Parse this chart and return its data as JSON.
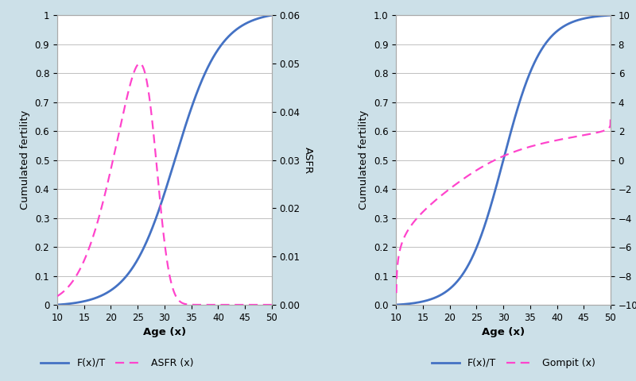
{
  "bg_color": "#cce0e8",
  "panel1": {
    "xlabel": "Age (x)",
    "ylabel_left": "Cumulated fertility",
    "ylabel_right": "ASFR",
    "xlim": [
      10,
      50
    ],
    "ylim_left": [
      0,
      1
    ],
    "ylim_right": [
      0,
      0.06
    ],
    "yticks_left": [
      0,
      0.1,
      0.2,
      0.3,
      0.4,
      0.5,
      0.6,
      0.7,
      0.8,
      0.9,
      1.0
    ],
    "yticks_right": [
      0,
      0.01,
      0.02,
      0.03,
      0.04,
      0.05,
      0.06
    ],
    "xticks": [
      10,
      15,
      20,
      25,
      30,
      35,
      40,
      45,
      50
    ],
    "line_color": "#4472c4",
    "dashed_color": "#ff44cc",
    "legend_labels": [
      "F(x)/T",
      "ASFR (x)"
    ]
  },
  "panel2": {
    "xlabel": "Age (x)",
    "ylabel_left": "Cumulated fertility",
    "ylabel_right": "Gompit",
    "xlim": [
      10,
      50
    ],
    "ylim_left": [
      0.0,
      1.0
    ],
    "ylim_right": [
      -10,
      10
    ],
    "yticks_left": [
      0.0,
      0.1,
      0.2,
      0.3,
      0.4,
      0.5,
      0.6,
      0.7,
      0.8,
      0.9,
      1.0
    ],
    "yticks_right": [
      -10,
      -8,
      -6,
      -4,
      -2,
      0,
      2,
      4,
      6,
      8,
      10
    ],
    "xticks": [
      10,
      15,
      20,
      25,
      30,
      35,
      40,
      45,
      50
    ],
    "line_color": "#4472c4",
    "dashed_color": "#ff44cc",
    "legend_labels": [
      "F(x)/T",
      "Gompit (x)"
    ]
  }
}
